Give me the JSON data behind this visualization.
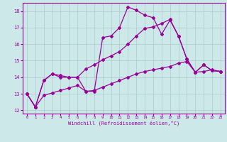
{
  "xlabel": "Windchill (Refroidissement éolien,°C)",
  "bg_color": "#cce8e8",
  "line_color": "#990099",
  "grid_color": "#aacccc",
  "xlim": [
    -0.5,
    23.5
  ],
  "ylim": [
    11.8,
    18.5
  ],
  "yticks": [
    12,
    13,
    14,
    15,
    16,
    17,
    18
  ],
  "xticks": [
    0,
    1,
    2,
    3,
    4,
    5,
    6,
    7,
    8,
    9,
    10,
    11,
    12,
    13,
    14,
    15,
    16,
    17,
    18,
    19,
    20,
    21,
    22,
    23
  ],
  "line1_x": [
    0,
    1,
    2,
    3,
    4,
    5,
    6,
    7,
    8,
    9,
    10,
    11,
    12,
    13,
    14,
    15,
    16,
    17,
    18,
    19,
    20,
    21,
    22,
    23
  ],
  "line1_y": [
    13.0,
    12.2,
    13.8,
    14.2,
    14.0,
    14.0,
    14.0,
    13.15,
    13.15,
    16.4,
    16.5,
    17.0,
    18.25,
    18.05,
    17.75,
    17.6,
    16.6,
    17.45,
    16.5,
    15.1,
    14.3,
    14.75,
    14.4,
    14.35
  ],
  "line2_x": [
    0,
    1,
    2,
    3,
    4,
    5,
    6,
    7,
    8,
    9,
    10,
    11,
    12,
    13,
    14,
    15,
    16,
    17,
    18,
    19,
    20,
    21,
    22,
    23
  ],
  "line2_y": [
    13.0,
    12.2,
    13.8,
    14.2,
    14.1,
    14.0,
    14.0,
    14.5,
    14.75,
    15.05,
    15.3,
    15.55,
    16.0,
    16.5,
    16.95,
    17.05,
    17.25,
    17.5,
    16.5,
    15.1,
    14.3,
    14.75,
    14.4,
    14.35
  ],
  "line3_x": [
    0,
    1,
    2,
    3,
    4,
    5,
    6,
    7,
    8,
    9,
    10,
    11,
    12,
    13,
    14,
    15,
    16,
    17,
    18,
    19,
    20,
    21,
    22,
    23
  ],
  "line3_y": [
    13.0,
    12.2,
    12.9,
    13.05,
    13.2,
    13.35,
    13.5,
    13.15,
    13.2,
    13.4,
    13.6,
    13.8,
    14.0,
    14.2,
    14.35,
    14.45,
    14.55,
    14.65,
    14.85,
    14.95,
    14.3,
    14.35,
    14.45,
    14.35
  ]
}
